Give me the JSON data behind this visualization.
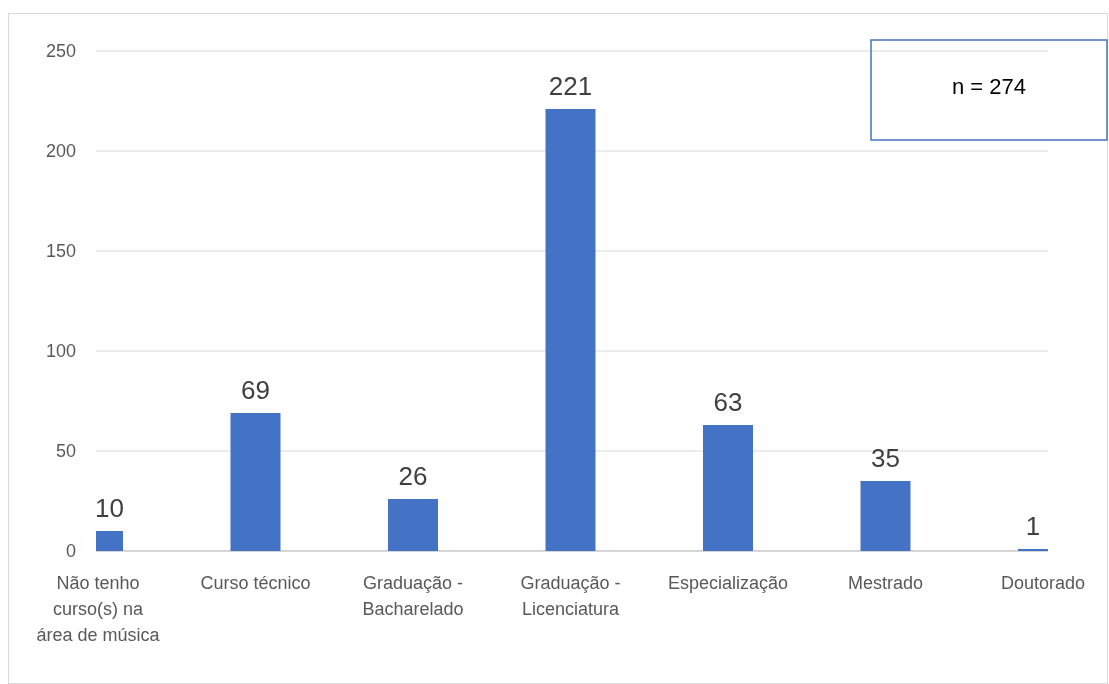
{
  "chart_data": {
    "type": "bar",
    "categories": [
      "Não tenho curso(s) na área de música",
      "Curso técnico",
      "Graduação - Bacharelado",
      "Graduação - Licenciatura",
      "Especialização",
      "Mestrado",
      "Doutorado"
    ],
    "values": [
      10,
      69,
      26,
      221,
      63,
      35,
      1
    ],
    "color": "#4472c4",
    "ylim": [
      0,
      250
    ],
    "yticks": [
      0,
      50,
      100,
      150,
      200,
      250
    ],
    "grid": "y",
    "data_labels": true,
    "annotations": [
      "n = 274"
    ]
  }
}
